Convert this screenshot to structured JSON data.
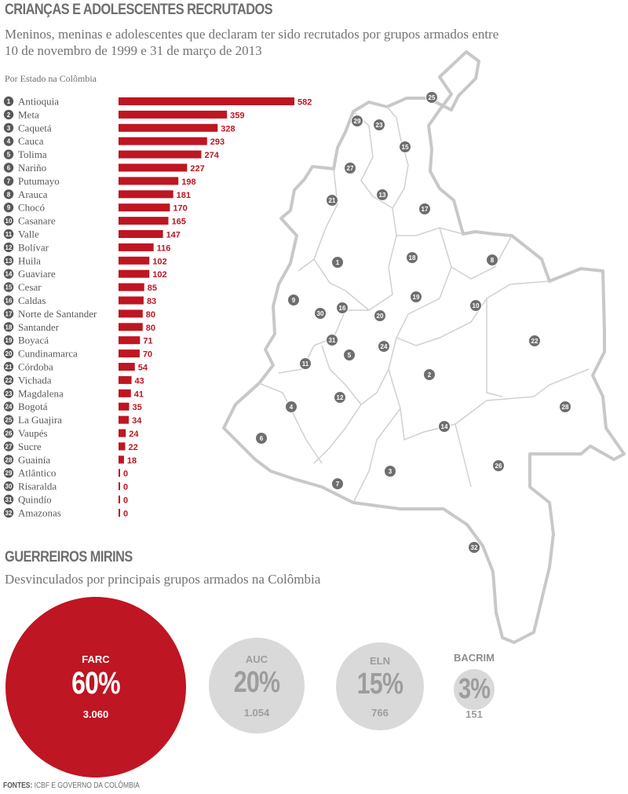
{
  "title": "CRIANÇAS E ADOLESCENTES RECRUTADOS",
  "subtitle": "Meninos, meninas e adolescentes que declaram ter sido recrutados por grupos armados entre 10 de novembro de 1999 e 31 de março de 2013",
  "note": "Por Estado na Colômbia",
  "chart_data": [
    {
      "type": "bar",
      "orientation": "horizontal",
      "title": "CRIANÇAS E ADOLESCENTES RECRUTADOS",
      "xlim": [
        0,
        582
      ],
      "categories": [
        "Antioquia",
        "Meta",
        "Caquetá",
        "Cauca",
        "Tolima",
        "Nariño",
        "Putumayo",
        "Arauca",
        "Chocó",
        "Casanare",
        "Valle",
        "Bolívar",
        "Huila",
        "Guaviare",
        "Cesar",
        "Caldas",
        "Norte de Santander",
        "Santander",
        "Boyacá",
        "Cundinamarca",
        "Córdoba",
        "Vichada",
        "Magdalena",
        "Bogotá",
        "La Guajira",
        "Vaupés",
        "Sucre",
        "Guainía",
        "Atlântico",
        "Risaralda",
        "Quindío",
        "Amazonas"
      ],
      "ranks": [
        "1",
        "2",
        "3",
        "4",
        "5",
        "6",
        "7",
        "8",
        "9",
        "10",
        "11",
        "12",
        "13",
        "14",
        "15",
        "16",
        "17",
        "18",
        "19",
        "20",
        "21",
        "22",
        "23",
        "24",
        "25",
        "26",
        "27",
        "28",
        "29",
        "30",
        "31",
        "32"
      ],
      "values": [
        582,
        359,
        328,
        293,
        274,
        227,
        198,
        181,
        170,
        165,
        147,
        116,
        102,
        102,
        85,
        83,
        80,
        80,
        71,
        70,
        54,
        43,
        41,
        35,
        34,
        24,
        22,
        18,
        0,
        0,
        0,
        0
      ],
      "bar_color": "#be1622"
    },
    {
      "type": "bubble",
      "title": "GUERREIROS MIRINS",
      "categories": [
        "FARC",
        "AUC",
        "ELN",
        "BACRIM"
      ],
      "values": [
        3060,
        1054,
        766,
        151
      ],
      "percent_labels": [
        "60%",
        "20%",
        "15%",
        "3%"
      ],
      "count_labels": [
        "3.060",
        "1.054",
        "766",
        "151"
      ]
    }
  ],
  "map_markers": [
    "1",
    "2",
    "3",
    "4",
    "5",
    "6",
    "7",
    "8",
    "9",
    "10",
    "11",
    "12",
    "13",
    "14",
    "15",
    "16",
    "17",
    "18",
    "19",
    "20",
    "21",
    "22",
    "23",
    "24",
    "25",
    "26",
    "27",
    "28",
    "29",
    "30",
    "31",
    "32"
  ],
  "section2": {
    "title": "GUERREIROS MIRINS",
    "subtitle": "Desvinculados por principais grupos armados na Colômbia"
  },
  "sources": {
    "label": "FONTES:",
    "text": "ICBF E GOVERNO DA COLÔMBIA"
  },
  "colors": {
    "accent": "#be1622",
    "text_gray": "#6d6e70",
    "map_stroke": "#c8c8c8",
    "marker": "#6d6e70"
  }
}
